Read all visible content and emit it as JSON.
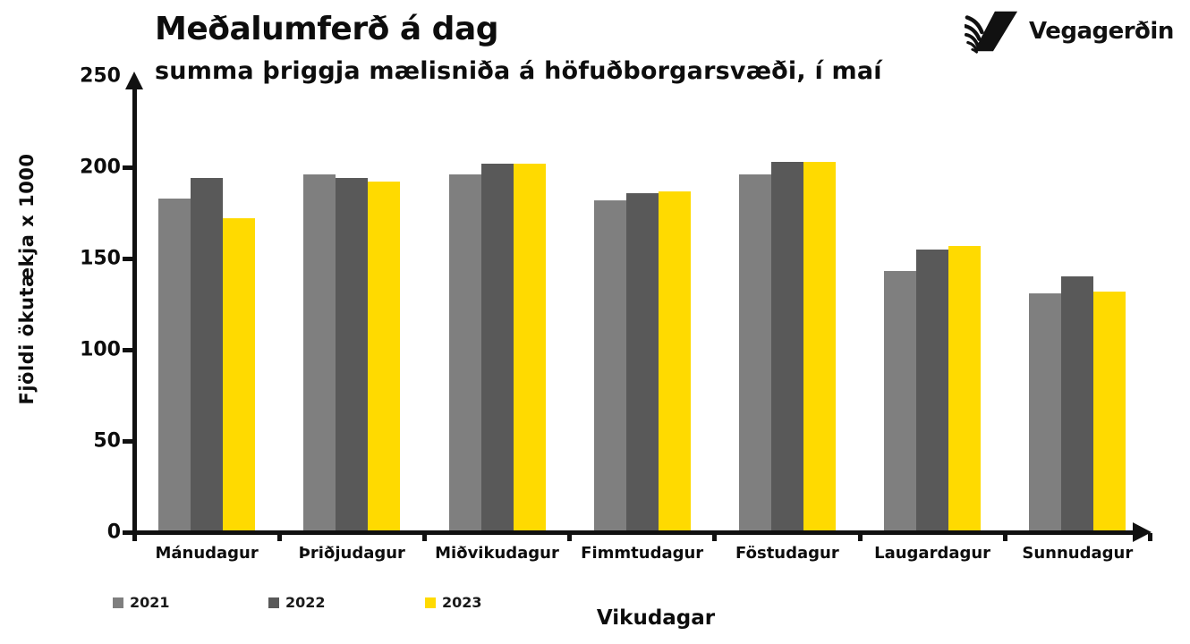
{
  "logo": {
    "text": "Vegagerðin"
  },
  "chart_data": {
    "type": "bar",
    "title": "Meðalumferð á dag",
    "subtitle": "summa þriggja mælisniða á höfuðborgarsvæði, í maí",
    "xlabel": "Vikudagar",
    "ylabel": "Fjöldi ökutækja x 1000",
    "categories": [
      "Mánudagur",
      "Þriðjudagur",
      "Miðvikudagur",
      "Fimmtudagur",
      "Föstudagur",
      "Laugardagur",
      "Sunnudagur"
    ],
    "series": [
      {
        "name": "2021",
        "color": "#7F7F7F",
        "values": [
          183,
          196,
          196,
          182,
          196,
          143,
          131
        ]
      },
      {
        "name": "2022",
        "color": "#595959",
        "values": [
          194,
          194,
          202,
          186,
          203,
          155,
          140
        ]
      },
      {
        "name": "2023",
        "color": "#FFDA00",
        "values": [
          172,
          192,
          202,
          187,
          203,
          157,
          132
        ]
      }
    ],
    "ylim": [
      0,
      250
    ],
    "yticks": [
      0,
      50,
      100,
      150,
      200,
      250
    ],
    "grid": false,
    "legend_position": "bottom-left",
    "axis_color": "#111111"
  }
}
